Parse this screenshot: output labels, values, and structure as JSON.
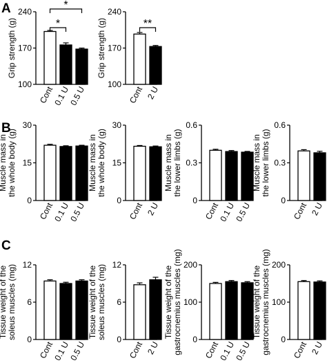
{
  "panels": [
    {
      "letter": "A"
    },
    {
      "letter": "B"
    },
    {
      "letter": "C"
    }
  ],
  "chart_data": [
    {
      "type": "bar",
      "panel": "A",
      "ylabel": "Grip strength (g)",
      "ylim": [
        100,
        240
      ],
      "yticks": [
        "100",
        "170",
        "240"
      ],
      "categories": [
        "Cont",
        "0.1 U",
        "0.5 U"
      ],
      "values": [
        202,
        176,
        168
      ],
      "errors": [
        2,
        4,
        2
      ],
      "bar_colors": [
        "#ffffff",
        "#000000",
        "#000000"
      ],
      "annotations": [
        {
          "label": "*",
          "from": 0,
          "to": 1,
          "level": 1
        },
        {
          "label": "*",
          "from": 0,
          "to": 2,
          "level": 2
        }
      ]
    },
    {
      "type": "bar",
      "panel": "A",
      "ylabel": "Grip strength (g)",
      "ylim": [
        100,
        240
      ],
      "yticks": [
        "100",
        "170",
        "240"
      ],
      "categories": [
        "Cont",
        "2 U"
      ],
      "values": [
        197,
        173
      ],
      "errors": [
        3,
        2
      ],
      "bar_colors": [
        "#ffffff",
        "#000000"
      ],
      "annotations": [
        {
          "label": "**",
          "from": 0,
          "to": 1,
          "level": 1
        }
      ]
    },
    {
      "type": "bar",
      "panel": "B",
      "ylabel": "Muscle mass in\nthe whole body (g)",
      "ylim": [
        0,
        30
      ],
      "yticks": [
        "0",
        "15",
        "30"
      ],
      "categories": [
        "Cont",
        "0.1 U",
        "0.5 U"
      ],
      "values": [
        22.0,
        21.5,
        21.7
      ],
      "errors": [
        0.4,
        0.3,
        0.3
      ],
      "bar_colors": [
        "#ffffff",
        "#000000",
        "#000000"
      ],
      "annotations": []
    },
    {
      "type": "bar",
      "panel": "B",
      "ylabel": "Muscle mass in\nthe whole body (g)",
      "ylim": [
        0,
        30
      ],
      "yticks": [
        "0",
        "15",
        "30"
      ],
      "categories": [
        "Cont",
        "2 U"
      ],
      "values": [
        21.6,
        21.4
      ],
      "errors": [
        0.3,
        0.3
      ],
      "bar_colors": [
        "#ffffff",
        "#000000"
      ],
      "annotations": []
    },
    {
      "type": "bar",
      "panel": "B",
      "ylabel": "Muscle mass in\nthe lower limbs (g)",
      "ylim": [
        0,
        0.6
      ],
      "yticks": [
        "0",
        "0.3",
        "0.6"
      ],
      "categories": [
        "Cont",
        "0.1 U",
        "0.5 U"
      ],
      "values": [
        0.4,
        0.39,
        0.385
      ],
      "errors": [
        0.008,
        0.008,
        0.006
      ],
      "bar_colors": [
        "#ffffff",
        "#000000",
        "#000000"
      ],
      "annotations": []
    },
    {
      "type": "bar",
      "panel": "B",
      "ylabel": "Muscle mass in\nthe lower limbs (g)",
      "ylim": [
        0,
        0.6
      ],
      "yticks": [
        "0",
        "0.3",
        "0.6"
      ],
      "categories": [
        "Cont",
        "2 U"
      ],
      "values": [
        0.395,
        0.38
      ],
      "errors": [
        0.01,
        0.012
      ],
      "bar_colors": [
        "#ffffff",
        "#000000"
      ],
      "annotations": []
    },
    {
      "type": "bar",
      "panel": "C",
      "ylabel": "Tissue weight of the\nsoleus muscles (mg)",
      "ylim": [
        0,
        12
      ],
      "yticks": [
        "0",
        "6",
        "12"
      ],
      "categories": [
        "Cont",
        "0.1 U",
        "0.5 U"
      ],
      "values": [
        9.4,
        9.0,
        9.4
      ],
      "errors": [
        0.2,
        0.2,
        0.2
      ],
      "bar_colors": [
        "#ffffff",
        "#000000",
        "#000000"
      ],
      "annotations": []
    },
    {
      "type": "bar",
      "panel": "C",
      "ylabel": "Tissue weight of the\nsoleus muscles (mg)",
      "ylim": [
        0,
        12
      ],
      "yticks": [
        "0",
        "6",
        "12"
      ],
      "categories": [
        "Cont",
        "2 U"
      ],
      "values": [
        8.8,
        9.6
      ],
      "errors": [
        0.3,
        0.4
      ],
      "bar_colors": [
        "#ffffff",
        "#000000"
      ],
      "annotations": []
    },
    {
      "type": "bar",
      "panel": "C",
      "ylabel": "Tissue weight of the\ngastrocnemius muscles (mg)",
      "ylim": [
        0,
        200
      ],
      "yticks": [
        "0",
        "100",
        "200"
      ],
      "categories": [
        "Cont",
        "0.1 U",
        "0.5 U"
      ],
      "values": [
        150,
        155,
        152
      ],
      "errors": [
        3,
        3,
        3
      ],
      "bar_colors": [
        "#ffffff",
        "#000000",
        "#000000"
      ],
      "annotations": []
    },
    {
      "type": "bar",
      "panel": "C",
      "ylabel": "Tissue weight of the\ngastrocnemius muscles (mg)",
      "ylim": [
        0,
        200
      ],
      "yticks": [
        "0",
        "100",
        "200"
      ],
      "categories": [
        "Cont",
        "2 U"
      ],
      "values": [
        155,
        154
      ],
      "errors": [
        3,
        3
      ],
      "bar_colors": [
        "#ffffff",
        "#000000"
      ],
      "annotations": []
    }
  ]
}
